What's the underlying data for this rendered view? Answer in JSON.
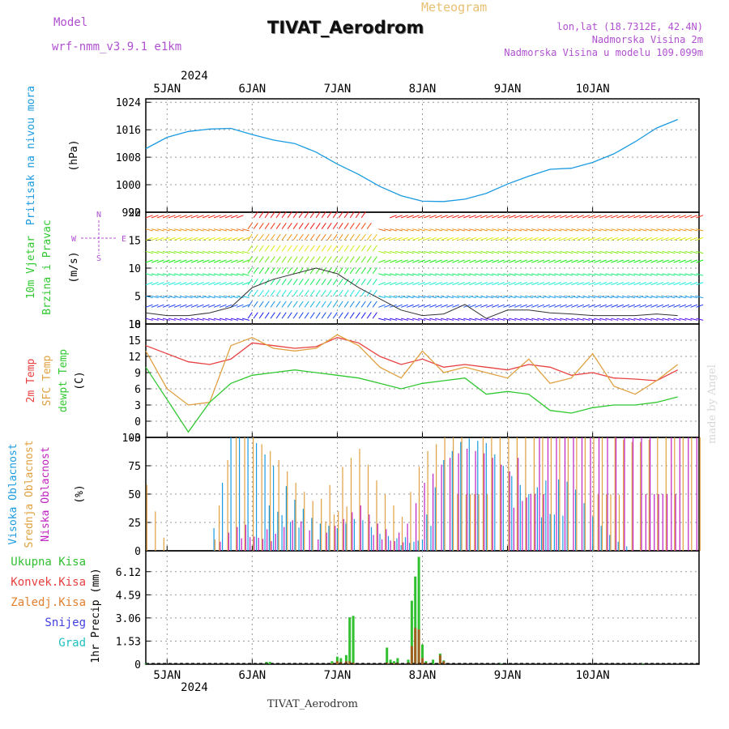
{
  "header": {
    "model_label": "Model",
    "model_name": "wrf-nmm_v3.9.1 e1km",
    "meteogram_label": "Meteogram",
    "title": "TIVAT_Aerodrom",
    "lonlat": "lon,lat (18.7312E, 42.4N)",
    "altitude_station": "Nadmorska Visina 2m",
    "altitude_model": "Nadmorska Visina u modelu 109.099m"
  },
  "footer": {
    "station": "TIVAT_Aerodrom",
    "credit": "made by Angel"
  },
  "colors": {
    "pressure": "#1a9be0",
    "t2m": "#e84040",
    "tsfc": "#e0a040",
    "dewpt": "#30c830",
    "cloud_high": "#1a9be0",
    "cloud_mid": "#e0a040",
    "cloud_low": "#c020c0",
    "precip_total": "#30c030",
    "precip_conv": "#e84040",
    "precip_frozen": "#e08030",
    "snow": "#4040e0",
    "hail": "#20c0c0"
  },
  "chart_data": [
    {
      "type": "line",
      "id": "pressure",
      "ylabel_lines": [
        "Pritisak na nivou mora",
        "(hPa)"
      ],
      "yticks": [
        "992",
        "1000",
        "1008",
        "1016",
        "1024"
      ],
      "ylim": [
        992,
        1025
      ],
      "x_top_label": "2024",
      "x_categories": [
        "5JAN",
        "6JAN",
        "7JAN",
        "8JAN",
        "9JAN",
        "10JAN"
      ],
      "x_hours": [
        0,
        6,
        12,
        18,
        24,
        30,
        36,
        42,
        48,
        54,
        60,
        66,
        72,
        78,
        84,
        90,
        96,
        102,
        108,
        114,
        120,
        126,
        132,
        138,
        144,
        150
      ],
      "series": [
        {
          "values": [
            1010.5,
            1013.8,
            1015.5,
            1016.2,
            1016.4,
            1014.6,
            1013.0,
            1012.0,
            1009.5,
            1006.0,
            1003.0,
            999.5,
            996.8,
            995.2,
            995.1,
            995.8,
            997.5,
            1000.2,
            1002.5,
            1004.5,
            1004.8,
            1006.5,
            1009.0,
            1012.5,
            1016.5,
            1019.0
          ]
        }
      ]
    },
    {
      "type": "scatter",
      "id": "wind",
      "ylabel_lines": [
        "10m Vjetar",
        "Brzina i Pravac",
        "(m/s)"
      ],
      "compass": {
        "north": "N",
        "west": "W",
        "east": "E",
        "south": "S"
      },
      "yticks": [
        "0",
        "5",
        "10",
        "15",
        "20"
      ],
      "ylim": [
        0,
        20
      ],
      "x_hours": [
        0,
        6,
        12,
        18,
        24,
        30,
        36,
        42,
        48,
        54,
        60,
        66,
        72,
        78,
        84,
        90,
        96,
        102,
        108,
        114,
        120,
        126,
        132,
        138,
        144,
        150
      ],
      "series": [
        {
          "values": [
            2.0,
            1.5,
            1.5,
            2.0,
            3.0,
            6.5,
            8.0,
            9.0,
            10.0,
            9.0,
            6.5,
            4.5,
            2.5,
            1.5,
            1.8,
            3.5,
            1.0,
            2.5,
            2.5,
            2.0,
            1.8,
            1.5,
            1.5,
            1.5,
            1.8,
            1.5
          ]
        }
      ]
    },
    {
      "type": "line",
      "id": "temperature",
      "ylabel_lines": [
        "2m Temp",
        "SFC Temp",
        "dewpt Temp",
        "(C)"
      ],
      "yticks": [
        "-3",
        "0",
        "3",
        "6",
        "9",
        "12",
        "15",
        "18"
      ],
      "ylim": [
        -3,
        18
      ],
      "x_hours": [
        0,
        6,
        12,
        18,
        24,
        30,
        36,
        42,
        48,
        54,
        60,
        66,
        72,
        78,
        84,
        90,
        96,
        102,
        108,
        114,
        120,
        126,
        132,
        138,
        144,
        150
      ],
      "series": [
        {
          "name": "2m Temp",
          "values": [
            14.0,
            12.5,
            11.0,
            10.5,
            11.5,
            14.5,
            14.0,
            13.5,
            13.8,
            15.5,
            14.5,
            12.0,
            10.5,
            11.5,
            10.0,
            10.5,
            10.0,
            9.5,
            10.5,
            10.0,
            8.5,
            9.0,
            8.0,
            7.8,
            7.5,
            9.5
          ]
        },
        {
          "name": "SFC Temp",
          "values": [
            13.0,
            6.0,
            3.0,
            3.5,
            14.0,
            15.5,
            13.5,
            13.0,
            13.5,
            16.0,
            14.0,
            10.0,
            8.0,
            13.0,
            9.0,
            10.0,
            9.0,
            8.0,
            11.5,
            7.0,
            8.0,
            12.5,
            6.5,
            5.0,
            7.5,
            10.5
          ]
        },
        {
          "name": "dewpt Temp",
          "values": [
            10.0,
            4.0,
            -2.0,
            3.5,
            7.0,
            8.5,
            9.0,
            9.5,
            9.0,
            8.5,
            8.0,
            7.0,
            6.0,
            7.0,
            7.5,
            8.0,
            5.0,
            5.5,
            5.0,
            2.0,
            1.5,
            2.5,
            3.0,
            3.0,
            3.5,
            4.5
          ]
        }
      ]
    },
    {
      "type": "bar",
      "id": "cloud",
      "ylabel_lines": [
        "Visoka Oblacnost",
        "Srednja Oblacnost",
        "Niska Oblacnost",
        "(%)"
      ],
      "yticks": [
        "0",
        "25",
        "50",
        "75",
        "100"
      ],
      "ylim": [
        0,
        100
      ],
      "x_hours": [
        0,
        6,
        12,
        18,
        24,
        30,
        36,
        42,
        48,
        54,
        60,
        66,
        72,
        78,
        84,
        90,
        96,
        102,
        108,
        114,
        120,
        126,
        132,
        138,
        144,
        150
      ],
      "series": [
        {
          "name": "Visoka Oblacnost",
          "values": [
            0,
            0,
            0,
            0,
            100,
            100,
            75,
            45,
            25,
            20,
            30,
            15,
            10,
            20,
            80,
            100,
            95,
            70,
            50,
            65,
            60,
            30,
            10,
            0,
            0,
            0
          ]
        },
        {
          "name": "Srednja Oblacnost",
          "values": [
            58,
            0,
            0,
            0,
            100,
            100,
            85,
            60,
            40,
            70,
            90,
            55,
            30,
            85,
            100,
            100,
            100,
            100,
            100,
            100,
            100,
            100,
            100,
            95,
            100,
            100
          ]
        },
        {
          "name": "Niska Oblacnost",
          "values": [
            0,
            0,
            0,
            0,
            20,
            25,
            15,
            30,
            10,
            25,
            40,
            20,
            15,
            60,
            80,
            90,
            85,
            70,
            100,
            100,
            100,
            100,
            100,
            100,
            100,
            100
          ]
        }
      ]
    },
    {
      "type": "bar",
      "id": "precip",
      "ylabel_lines": [
        "1hr Precip",
        "(mm)"
      ],
      "legend": [
        "Ukupna Kisa",
        "Konvek.Kisa",
        "Zaledj.Kisa",
        "Snijeg",
        "Grad"
      ],
      "yticks": [
        "0",
        "1.53",
        "3.06",
        "4.59",
        "6.12"
      ],
      "ylim": [
        0,
        7.5
      ],
      "x_bottom_label": "2024",
      "x_categories": [
        "5JAN",
        "6JAN",
        "7JAN",
        "8JAN",
        "9JAN",
        "10JAN"
      ],
      "bars": [
        {
          "hour": 0,
          "total": 0.05,
          "conv": 0.0
        },
        {
          "hour": 34.0,
          "total": 0.15,
          "conv": 0.0
        },
        {
          "hour": 35.0,
          "total": 0.15,
          "conv": 0.0
        },
        {
          "hour": 52.5,
          "total": 0.2,
          "conv": 0.05
        },
        {
          "hour": 54.0,
          "total": 0.5,
          "conv": 0.2
        },
        {
          "hour": 55.0,
          "total": 0.4,
          "conv": 0.15
        },
        {
          "hour": 56.5,
          "total": 0.6,
          "conv": 0.2
        },
        {
          "hour": 57.5,
          "total": 3.1,
          "conv": 0.2
        },
        {
          "hour": 58.5,
          "total": 3.2,
          "conv": 0.1
        },
        {
          "hour": 68.0,
          "total": 1.1,
          "conv": 0.1
        },
        {
          "hour": 69.0,
          "total": 0.3,
          "conv": 0.05
        },
        {
          "hour": 70.0,
          "total": 0.2,
          "conv": 0.05
        },
        {
          "hour": 71.0,
          "total": 0.4,
          "conv": 0.1
        },
        {
          "hour": 74.0,
          "total": 0.3,
          "conv": 0.1
        },
        {
          "hour": 75.0,
          "total": 4.2,
          "conv": 1.2
        },
        {
          "hour": 76.0,
          "total": 5.8,
          "conv": 2.4
        },
        {
          "hour": 77.0,
          "total": 7.1,
          "conv": 2.3
        },
        {
          "hour": 78.0,
          "total": 1.3,
          "conv": 0.4
        },
        {
          "hour": 79.0,
          "total": 0.2,
          "conv": 0.1
        },
        {
          "hour": 81.0,
          "total": 0.3,
          "conv": 0.0
        },
        {
          "hour": 83.0,
          "total": 0.7,
          "conv": 0.6
        },
        {
          "hour": 84.0,
          "total": 0.25,
          "conv": 0.2
        },
        {
          "hour": 100.0,
          "total": 0.05,
          "conv": 0.0
        },
        {
          "hour": 140.0,
          "total": 0.05,
          "conv": 0.0
        }
      ]
    }
  ]
}
